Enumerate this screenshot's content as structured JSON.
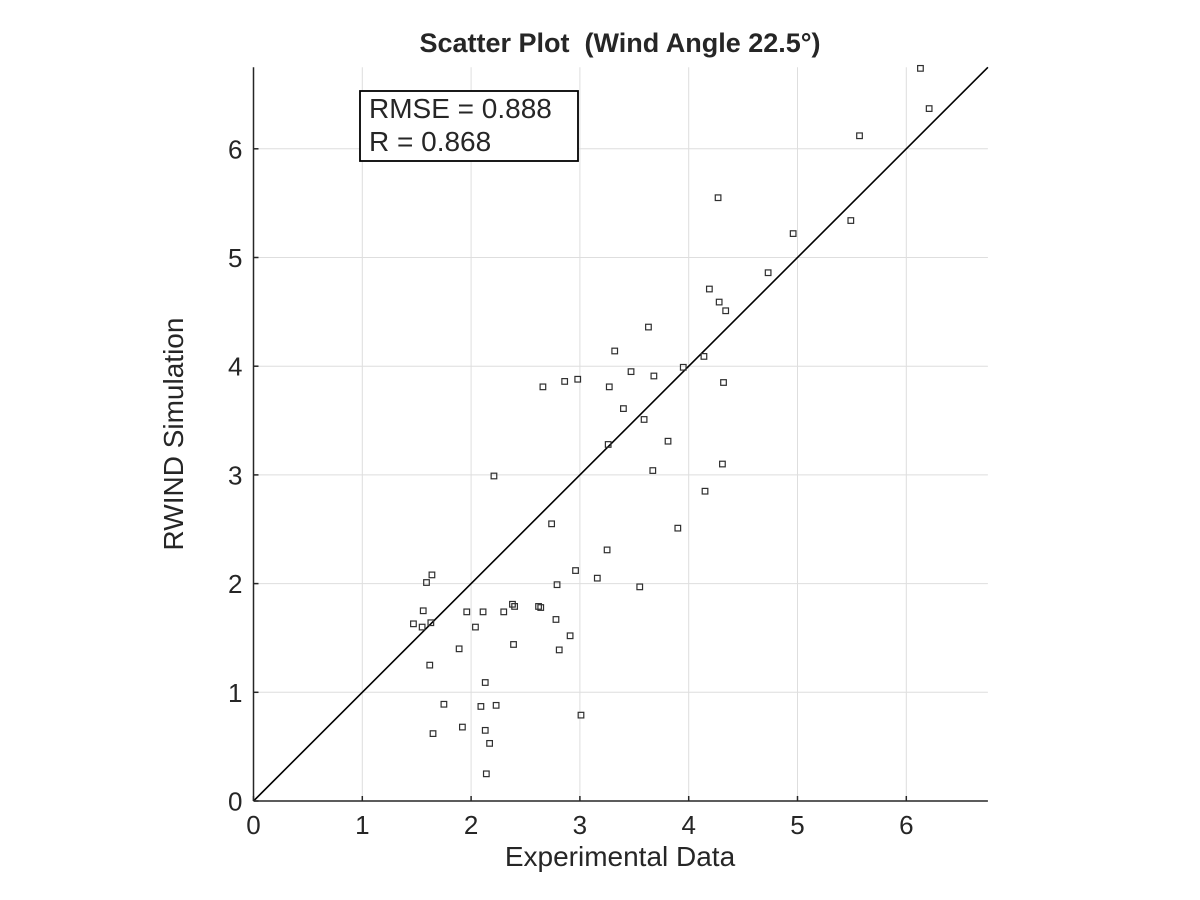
{
  "figure": {
    "background": "#ffffff"
  },
  "chart_data": {
    "type": "scatter",
    "title": "Scatter Plot  (Wind Angle 22.5°)",
    "xlabel": "Experimental Data",
    "ylabel": "RWIND Simulation",
    "xlim": [
      0,
      6.75
    ],
    "ylim": [
      0,
      6.75
    ],
    "xticks": [
      0,
      1,
      2,
      3,
      4,
      5,
      6
    ],
    "yticks": [
      0,
      1,
      2,
      3,
      4,
      5,
      6
    ],
    "grid": true,
    "legend": "none",
    "box": "off",
    "marker": "square-open",
    "annotation": {
      "rmse_label": "RMSE = 0.888",
      "r_label": "R = 0.868",
      "rmse": 0.888,
      "r": 0.868
    },
    "identity_line": {
      "x": [
        0,
        6.75
      ],
      "y": [
        0,
        6.75
      ]
    },
    "colors": {
      "marker_edge": "#2f2f2f",
      "line": "#000000",
      "grid": "#dedede",
      "axis": "#262626",
      "text": "#262626",
      "annotation_border": "#000000",
      "annotation_fill": "#ffffff"
    },
    "points": [
      [
        1.64,
        2.08
      ],
      [
        1.59,
        2.01
      ],
      [
        1.56,
        1.75
      ],
      [
        1.47,
        1.63
      ],
      [
        1.55,
        1.6
      ],
      [
        1.63,
        1.64
      ],
      [
        1.89,
        1.4
      ],
      [
        1.62,
        1.25
      ],
      [
        1.96,
        1.74
      ],
      [
        2.11,
        1.74
      ],
      [
        2.04,
        1.6
      ],
      [
        2.13,
        1.09
      ],
      [
        2.3,
        1.74
      ],
      [
        2.38,
        1.81
      ],
      [
        2.4,
        1.79
      ],
      [
        2.39,
        1.44
      ],
      [
        2.62,
        1.79
      ],
      [
        2.64,
        1.78
      ],
      [
        2.79,
        1.99
      ],
      [
        2.96,
        2.12
      ],
      [
        3.16,
        2.05
      ],
      [
        3.25,
        2.31
      ],
      [
        2.78,
        1.67
      ],
      [
        2.91,
        1.52
      ],
      [
        2.81,
        1.39
      ],
      [
        3.01,
        0.79
      ],
      [
        1.75,
        0.89
      ],
      [
        1.65,
        0.62
      ],
      [
        1.92,
        0.68
      ],
      [
        2.09,
        0.87
      ],
      [
        2.23,
        0.88
      ],
      [
        2.13,
        0.65
      ],
      [
        2.17,
        0.53
      ],
      [
        2.14,
        0.25
      ],
      [
        3.55,
        1.97
      ],
      [
        2.21,
        2.99
      ],
      [
        2.74,
        2.55
      ],
      [
        2.66,
        3.81
      ],
      [
        2.86,
        3.86
      ],
      [
        2.98,
        3.88
      ],
      [
        3.32,
        4.14
      ],
      [
        3.47,
        3.95
      ],
      [
        3.68,
        3.91
      ],
      [
        3.27,
        3.81
      ],
      [
        3.95,
        3.99
      ],
      [
        4.14,
        4.09
      ],
      [
        4.32,
        3.85
      ],
      [
        3.4,
        3.61
      ],
      [
        3.59,
        3.51
      ],
      [
        3.26,
        3.28
      ],
      [
        3.81,
        3.31
      ],
      [
        3.67,
        3.04
      ],
      [
        4.31,
        3.1
      ],
      [
        4.15,
        2.85
      ],
      [
        3.9,
        2.51
      ],
      [
        4.27,
        5.55
      ],
      [
        4.96,
        5.22
      ],
      [
        4.73,
        4.86
      ],
      [
        4.19,
        4.71
      ],
      [
        4.28,
        4.59
      ],
      [
        4.34,
        4.51
      ],
      [
        3.63,
        4.36
      ],
      [
        6.13,
        6.74
      ],
      [
        6.21,
        6.37
      ],
      [
        5.57,
        6.12
      ],
      [
        5.49,
        5.34
      ]
    ]
  }
}
